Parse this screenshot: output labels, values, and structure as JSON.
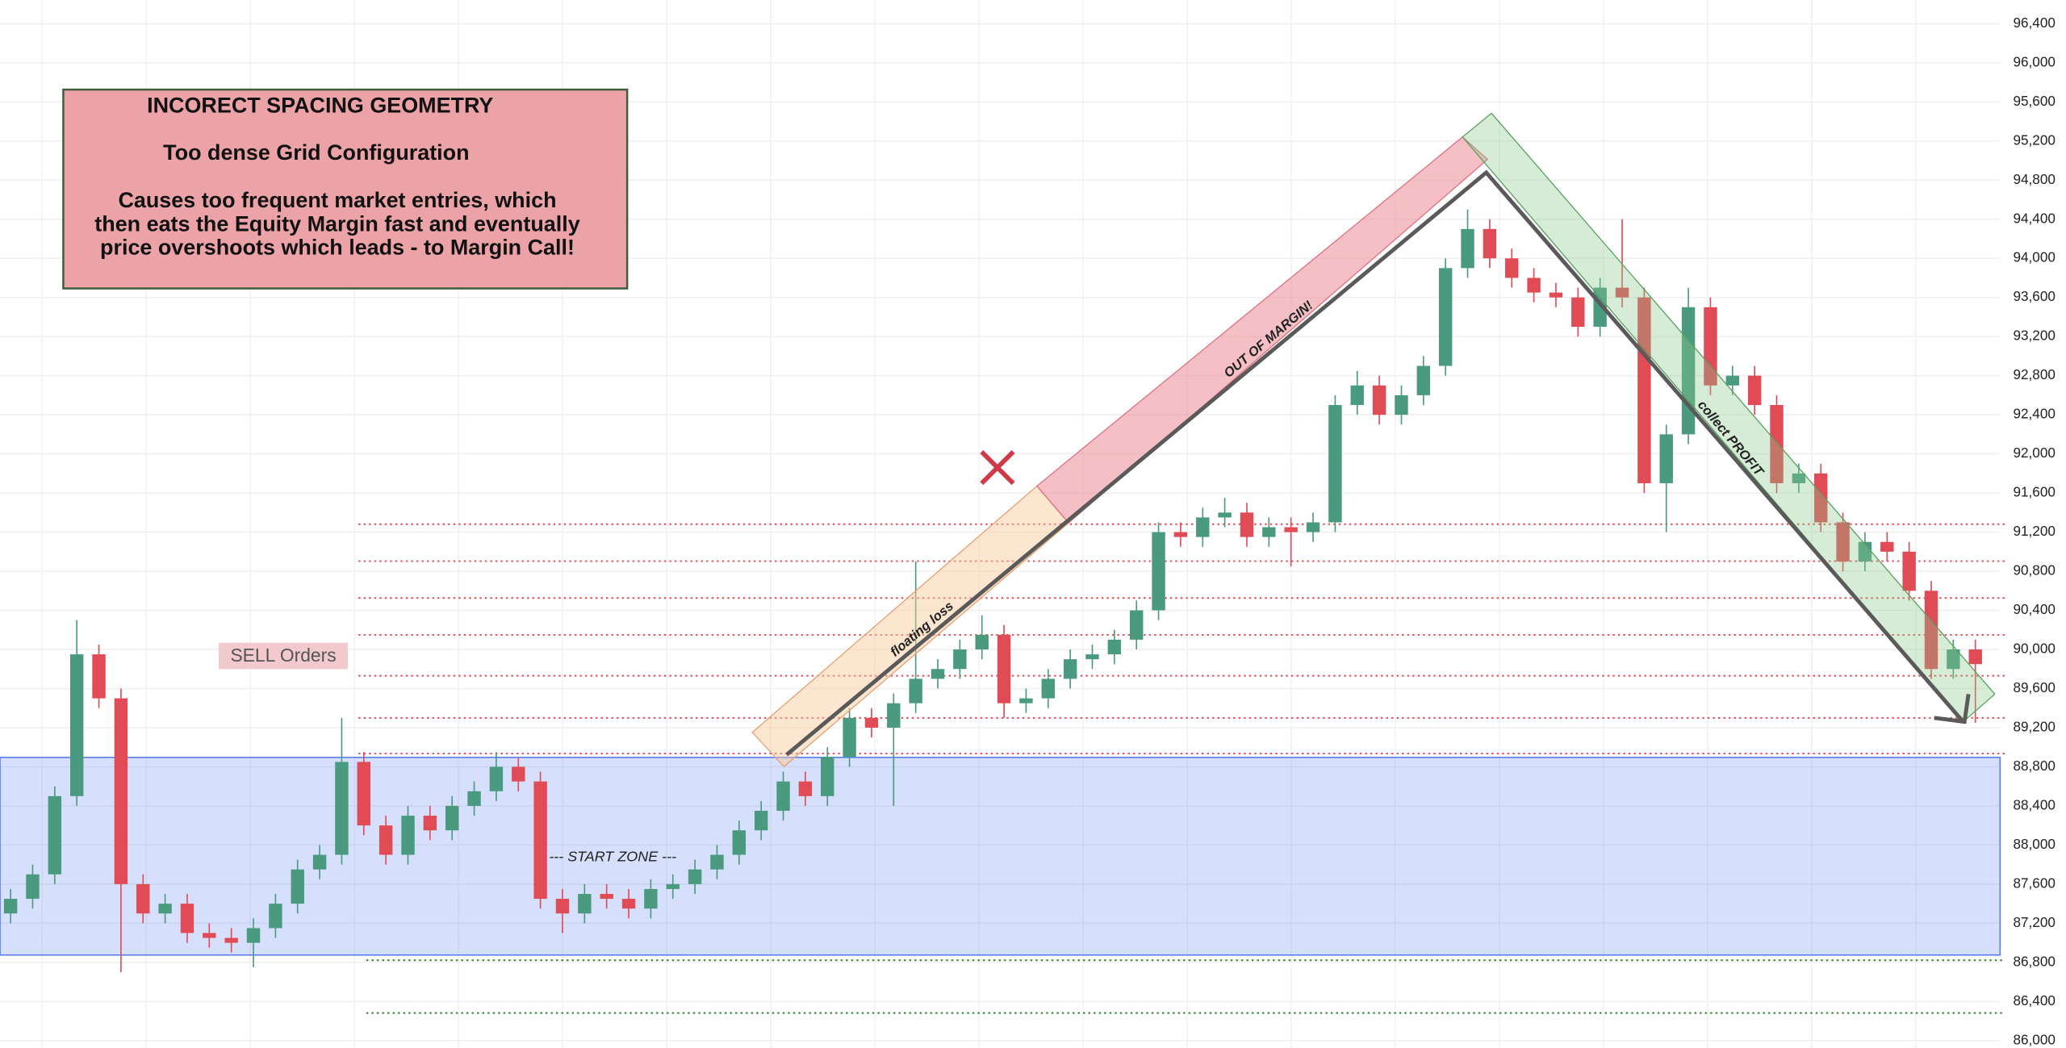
{
  "chart_data": {
    "type": "candlestick",
    "title": "INCORECT SPACING GEOMETRY",
    "annotations": [
      "Too dense Grid Configuration",
      "Causes too frequent market entries, which",
      "then eats the Equity Margin fast and eventually",
      "price overshoots which leads - to Margin Call!",
      "SELL Orders",
      "--- START ZONE ---",
      "floating loss",
      "OUT OF MARGIN!",
      "collect PROFIT"
    ],
    "ylim": [
      85924,
      96642
    ],
    "yticks": [
      {
        "value": 86000,
        "label": "86,000"
      },
      {
        "value": 86400,
        "label": "86,400"
      },
      {
        "value": 86800,
        "label": "86,800"
      },
      {
        "value": 87200,
        "label": "87,200"
      },
      {
        "value": 87600,
        "label": "87,600"
      },
      {
        "value": 88000,
        "label": "88,000"
      },
      {
        "value": 88400,
        "label": "88,400"
      },
      {
        "value": 88800,
        "label": "88,800"
      },
      {
        "value": 89200,
        "label": "89,200"
      },
      {
        "value": 89600,
        "label": "89,600"
      },
      {
        "value": 90000,
        "label": "90,000"
      },
      {
        "value": 90400,
        "label": "90,400"
      },
      {
        "value": 90800,
        "label": "90,800"
      },
      {
        "value": 91200,
        "label": "91,200"
      },
      {
        "value": 91600,
        "label": "91,600"
      },
      {
        "value": 92000,
        "label": "92,000"
      },
      {
        "value": 92400,
        "label": "92,400"
      },
      {
        "value": 92800,
        "label": "92,800"
      },
      {
        "value": 93200,
        "label": "93,200"
      },
      {
        "value": 93600,
        "label": "93,600"
      },
      {
        "value": 94000,
        "label": "94,000"
      },
      {
        "value": 94400,
        "label": "94,400"
      },
      {
        "value": 94800,
        "label": "94,800"
      },
      {
        "value": 95200,
        "label": "95,200"
      },
      {
        "value": 95600,
        "label": "95,600"
      },
      {
        "value": 96000,
        "label": "96,000"
      },
      {
        "value": 96400,
        "label": "96,400"
      }
    ],
    "grid": true,
    "up_color": "#4a9a80",
    "down_color": "#e04b55",
    "open": [
      87300,
      87450,
      87700,
      88500,
      89950,
      89500,
      87600,
      87300,
      87400,
      87100,
      87050,
      87000,
      87150,
      87400,
      87750,
      87900,
      88850,
      88200,
      87900,
      88300,
      88150,
      88400,
      88550,
      88800,
      88650,
      87450,
      87300,
      87500,
      87450,
      87350,
      87550,
      87600,
      87750,
      87900,
      88150,
      88350,
      88650,
      88500,
      88900,
      89300,
      89200,
      89450,
      89700,
      89800,
      90000,
      90150,
      89450,
      89500,
      89700,
      89900,
      89950,
      90100,
      90400,
      91200,
      91150,
      91350,
      91400,
      91150,
      91250,
      91200,
      91300,
      92500,
      92700,
      92400,
      92600,
      92900,
      93900,
      94300,
      94000,
      93800,
      93650,
      93600,
      93300,
      93700,
      93600,
      91700,
      92200,
      93500,
      92700,
      92800,
      92500,
      91700,
      91800,
      91300,
      90900,
      91100,
      91000,
      90600,
      89800,
      90000
    ],
    "high": [
      87550,
      87800,
      88600,
      90300,
      90050,
      89600,
      87700,
      87500,
      87500,
      87200,
      87150,
      87250,
      87500,
      87850,
      88000,
      89300,
      88950,
      88300,
      88400,
      88400,
      88500,
      88650,
      88950,
      88900,
      88750,
      87550,
      87600,
      87600,
      87550,
      87650,
      87700,
      87850,
      88000,
      88250,
      88450,
      88750,
      88750,
      89000,
      89400,
      89400,
      89550,
      90900,
      89900,
      90100,
      90350,
      90250,
      89600,
      89800,
      90000,
      90050,
      90200,
      90500,
      91300,
      91300,
      91450,
      91550,
      91500,
      91350,
      91350,
      91400,
      92600,
      92850,
      92800,
      92700,
      93000,
      94000,
      94500,
      94400,
      94100,
      93900,
      93750,
      93700,
      93800,
      94400,
      93700,
      92300,
      93700,
      93600,
      92900,
      92900,
      92600,
      91900,
      91900,
      91400,
      91200,
      91200,
      91100,
      90700,
      90100,
      90100
    ],
    "low": [
      87200,
      87350,
      87600,
      88400,
      89400,
      86700,
      87200,
      87200,
      87000,
      86950,
      86900,
      86750,
      87050,
      87300,
      87650,
      87800,
      88100,
      87800,
      87800,
      88050,
      88050,
      88300,
      88450,
      88550,
      87350,
      87100,
      87200,
      87350,
      87250,
      87250,
      87450,
      87500,
      87650,
      87800,
      88050,
      88250,
      88400,
      88400,
      88800,
      89100,
      88400,
      89350,
      89600,
      89700,
      89900,
      89300,
      89350,
      89400,
      89600,
      89800,
      89850,
      90000,
      90300,
      91050,
      91050,
      91250,
      91050,
      91050,
      90850,
      91100,
      91200,
      92400,
      92300,
      92300,
      92500,
      92800,
      93800,
      93900,
      93700,
      93550,
      93500,
      93200,
      93200,
      93500,
      91600,
      91200,
      92100,
      92600,
      92600,
      92400,
      91600,
      91600,
      91200,
      90800,
      90800,
      90900,
      90500,
      89700,
      89700,
      89250
    ],
    "close": [
      87450,
      87700,
      88500,
      89950,
      89500,
      87600,
      87300,
      87400,
      87100,
      87050,
      87000,
      87150,
      87400,
      87750,
      87900,
      88850,
      88200,
      87900,
      88300,
      88150,
      88400,
      88550,
      88800,
      88650,
      87450,
      87300,
      87500,
      87450,
      87350,
      87550,
      87600,
      87750,
      87900,
      88150,
      88350,
      88650,
      88500,
      88900,
      89300,
      89200,
      89450,
      89700,
      89800,
      90000,
      90150,
      89450,
      89500,
      89700,
      89900,
      89950,
      90100,
      90400,
      91200,
      91150,
      91350,
      91400,
      91150,
      91250,
      91200,
      91300,
      92500,
      92700,
      92400,
      92600,
      92900,
      93900,
      94300,
      94000,
      93800,
      93650,
      93600,
      93300,
      93700,
      93600,
      91700,
      92200,
      93500,
      92700,
      92800,
      92500,
      91700,
      91800,
      91300,
      90900,
      91100,
      91000,
      90600,
      89800,
      90000,
      89850
    ],
    "red_levels": [
      91281,
      90903,
      90526,
      90149,
      89731,
      89300,
      88936
    ],
    "red_level_color": "#e04b55",
    "green_levels": [
      86821,
      86282
    ],
    "green_level_color": "#2e7d32",
    "zone": [
      86875,
      88896
    ],
    "zone_color": "#5b7ff5"
  }
}
